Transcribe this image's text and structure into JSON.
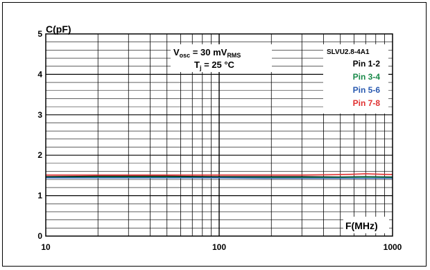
{
  "chart_data": {
    "type": "line",
    "x_scale": "log",
    "xlim": [
      10,
      1000
    ],
    "ylim": [
      0,
      5
    ],
    "x_ticks": [
      "10",
      "100",
      "1000"
    ],
    "y_ticks": [
      "0",
      "1",
      "2",
      "3",
      "4",
      "5"
    ],
    "xlabel": "F(MHz)",
    "ylabel": "C(pF)",
    "grid": true,
    "conditions": {
      "vosc_main": "V",
      "vosc_sub": "osc",
      "vosc_value": " = 30 mV",
      "vosc_unit_sub": "RMS",
      "tj_main": "T",
      "tj_sub": "j",
      "tj_value": " = 25 °C"
    },
    "legend_title": "SLVU2.8-4A1",
    "legend_position": "top-right",
    "series": [
      {
        "name": "Pin 1-2",
        "color": "#000000",
        "points": [
          [
            10,
            1.47
          ],
          [
            20,
            1.48
          ],
          [
            50,
            1.48
          ],
          [
            100,
            1.47
          ],
          [
            200,
            1.47
          ],
          [
            300,
            1.47
          ],
          [
            500,
            1.46
          ],
          [
            700,
            1.47
          ],
          [
            1000,
            1.46
          ]
        ]
      },
      {
        "name": "Pin 3-4",
        "color": "#1a8a4a",
        "points": [
          [
            10,
            1.45
          ],
          [
            20,
            1.46
          ],
          [
            50,
            1.46
          ],
          [
            100,
            1.45
          ],
          [
            200,
            1.45
          ],
          [
            300,
            1.45
          ],
          [
            500,
            1.45
          ],
          [
            700,
            1.46
          ],
          [
            1000,
            1.45
          ]
        ]
      },
      {
        "name": "Pin 5-6",
        "color": "#2a5ab0",
        "points": [
          [
            10,
            1.44
          ],
          [
            20,
            1.44
          ],
          [
            50,
            1.44
          ],
          [
            100,
            1.44
          ],
          [
            200,
            1.43
          ],
          [
            300,
            1.43
          ],
          [
            500,
            1.43
          ],
          [
            700,
            1.43
          ],
          [
            1000,
            1.43
          ]
        ]
      },
      {
        "name": "Pin 7-8",
        "color": "#e03030",
        "points": [
          [
            10,
            1.51
          ],
          [
            20,
            1.51
          ],
          [
            50,
            1.51
          ],
          [
            100,
            1.51
          ],
          [
            200,
            1.51
          ],
          [
            300,
            1.51
          ],
          [
            500,
            1.52
          ],
          [
            700,
            1.54
          ],
          [
            1000,
            1.52
          ]
        ]
      }
    ]
  }
}
